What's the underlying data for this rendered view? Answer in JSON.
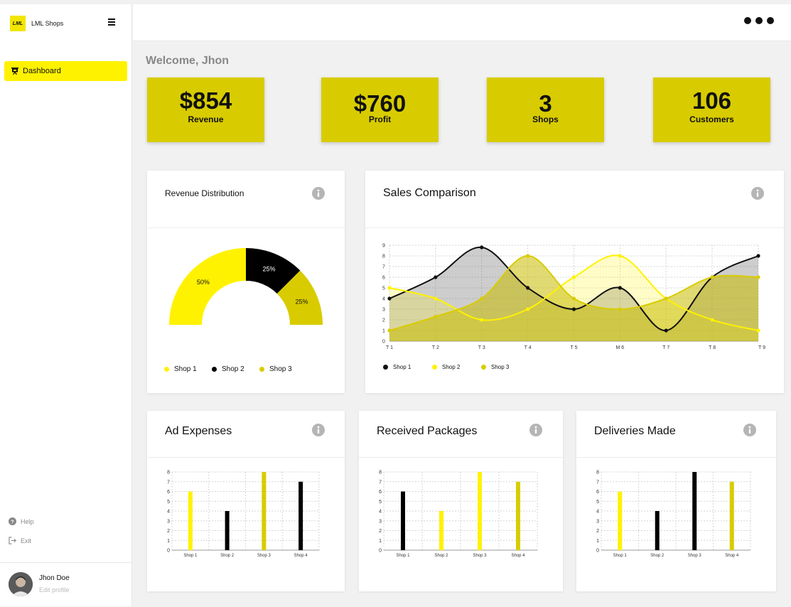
{
  "app": {
    "logo_text": "LML",
    "name": "LML Shops"
  },
  "sidebar": {
    "nav": [
      {
        "label": "Dashboard",
        "icon": "presentation-icon",
        "active": true
      }
    ],
    "bottom_links": [
      {
        "label": "Help",
        "icon": "question-circle-icon"
      },
      {
        "label": "Exit",
        "icon": "logout-icon"
      }
    ],
    "user": {
      "name": "Jhon Doe",
      "edit_label": "Edit profile"
    }
  },
  "topbar": {
    "menu_icon": "more-dots-icon"
  },
  "welcome": "Welcome, Jhon",
  "stats": [
    {
      "value": "$854",
      "label": "Revenue"
    },
    {
      "value": "$760",
      "label": "Profit"
    },
    {
      "value": "3",
      "label": "Shops"
    },
    {
      "value": "106",
      "label": "Customers"
    }
  ],
  "colors": {
    "shop1": "#fff200",
    "shop2": "#000000",
    "shop3": "#d8cc00",
    "accent": "#fff200",
    "stat_bg": "#d8cc00"
  },
  "cards": {
    "revenue": {
      "title": "Revenue Distribution"
    },
    "sales": {
      "title": "Sales Comparison"
    },
    "ads": {
      "title": "Ad Expenses"
    },
    "packages": {
      "title": "Received Packages"
    },
    "deliveries": {
      "title": "Deliveries Made"
    }
  },
  "chart_data": [
    {
      "type": "pie",
      "variant": "half-donut",
      "categories": [
        "Shop 1",
        "Shop 2",
        "Shop 3"
      ],
      "values": [
        50,
        25,
        25
      ],
      "value_labels": [
        "50%",
        "25%",
        "25%"
      ],
      "title": "Revenue Distribution",
      "legend": "bottom"
    },
    {
      "type": "area",
      "title": "Sales Comparison",
      "x": [
        "T 1",
        "T 2",
        "T 3",
        "T 4",
        "T 5",
        "M 6",
        "T 7",
        "T 8",
        "T 9"
      ],
      "ylim": [
        0,
        9
      ],
      "yticks": [
        0,
        1,
        2,
        3,
        4,
        5,
        6,
        7,
        8,
        9
      ],
      "grid": true,
      "legend": "bottom-left",
      "series": [
        {
          "name": "Shop 1",
          "values": [
            4,
            6,
            8.8,
            5,
            3,
            5,
            1,
            6,
            8
          ]
        },
        {
          "name": "Shop 2",
          "values": [
            5,
            4,
            2,
            3,
            6,
            8,
            4,
            2,
            1
          ]
        },
        {
          "name": "Shop 3",
          "values": [
            1,
            2.3,
            4,
            8,
            4,
            3,
            4,
            6,
            6
          ]
        }
      ]
    },
    {
      "type": "bar",
      "title": "Ad Expenses",
      "categories": [
        "Shop 1",
        "Shop 2",
        "Shop 3",
        "Shop 4"
      ],
      "values": [
        6,
        4,
        8,
        7
      ],
      "ylim": [
        0,
        8
      ],
      "yticks": [
        0,
        1,
        2,
        3,
        4,
        5,
        6,
        7,
        8
      ],
      "bar_colors": [
        "#fff200",
        "#000000",
        "#d8cc00",
        "#000000"
      ],
      "grid": true
    },
    {
      "type": "bar",
      "title": "Received Packages",
      "categories": [
        "Shop 1",
        "Shop 2",
        "Shop 3",
        "Shop 4"
      ],
      "values": [
        6,
        4,
        8,
        7
      ],
      "ylim": [
        0,
        8
      ],
      "yticks": [
        0,
        1,
        2,
        3,
        4,
        5,
        6,
        7,
        8
      ],
      "bar_colors": [
        "#000000",
        "#fff200",
        "#fff200",
        "#d8cc00"
      ],
      "grid": true
    },
    {
      "type": "bar",
      "title": "Deliveries Made",
      "categories": [
        "Shop 1",
        "Shop 2",
        "Shop 3",
        "Shop 4"
      ],
      "values": [
        6,
        4,
        8,
        7
      ],
      "ylim": [
        0,
        8
      ],
      "yticks": [
        0,
        1,
        2,
        3,
        4,
        5,
        6,
        7,
        8
      ],
      "bar_colors": [
        "#fff200",
        "#000000",
        "#000000",
        "#d8cc00"
      ],
      "grid": true
    }
  ]
}
